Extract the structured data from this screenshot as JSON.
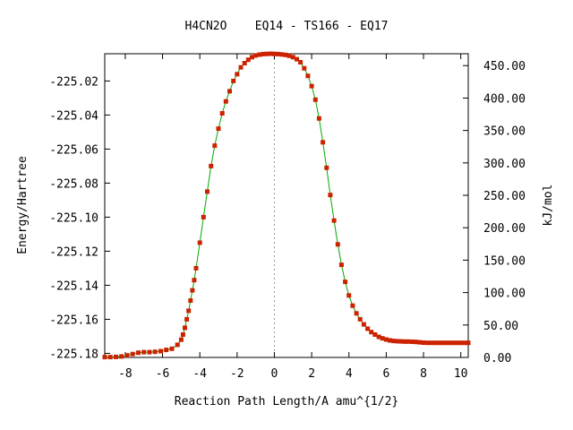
{
  "chart_data": {
    "type": "line",
    "title": "H4CN2O    EQ14 - TS166 - EQ17",
    "xlabel": "Reaction Path Length/A amu^{1/2}",
    "ylabel": "Energy/Hartree",
    "y2label": "kJ/mol",
    "xlim": [
      -9.1,
      10.4
    ],
    "ylim": [
      -225.1824,
      -225.004
    ],
    "y2lim": [
      0,
      468.3
    ],
    "x_ticks": [
      -8,
      -6,
      -4,
      -2,
      0,
      2,
      4,
      6,
      8,
      10
    ],
    "y_ticks": [
      -225.18,
      -225.16,
      -225.14,
      -225.12,
      -225.1,
      -225.08,
      -225.06,
      -225.04,
      -225.02
    ],
    "y2_ticks": [
      "0.00",
      "50.00",
      "100.00",
      "150.00",
      "200.00",
      "250.00",
      "300.00",
      "350.00",
      "400.00",
      "450.00"
    ],
    "ts_x": 0,
    "grid": false,
    "colors": {
      "line": "#00aa00",
      "marker": "#cc2200",
      "ts_line": "#999999"
    },
    "series": [
      {
        "x": [
          -9.1,
          -8.8,
          -8.5,
          -8.2,
          -7.9,
          -7.6,
          -7.3,
          -7.0,
          -6.7,
          -6.4,
          -6.1,
          -5.8,
          -5.5,
          -5.2,
          -5.0,
          -4.9,
          -4.8,
          -4.7,
          -4.6,
          -4.5,
          -4.4,
          -4.3,
          -4.2,
          -4.0,
          -3.8,
          -3.6,
          -3.4,
          -3.2,
          -3.0,
          -2.8,
          -2.6,
          -2.4,
          -2.2,
          -2.0,
          -1.8,
          -1.6,
          -1.4,
          -1.2,
          -1.0,
          -0.8,
          -0.6,
          -0.4,
          -0.2,
          0.0,
          0.2,
          0.4,
          0.6,
          0.8,
          1.0,
          1.2,
          1.4,
          1.6,
          1.8,
          2.0,
          2.2,
          2.4,
          2.6,
          2.8,
          3.0,
          3.2,
          3.4,
          3.6,
          3.8,
          4.0,
          4.2,
          4.4,
          4.6,
          4.8,
          5.0,
          5.2,
          5.4,
          5.6,
          5.8,
          6.0,
          6.2,
          6.4,
          6.6,
          6.8,
          7.0,
          7.2,
          7.4,
          7.6,
          7.8,
          8.0,
          8.2,
          8.4,
          8.6,
          8.8,
          9.0,
          9.2,
          9.4,
          9.6,
          9.8,
          10.0,
          10.2,
          10.4
        ],
        "y": [
          -225.1822,
          -225.1822,
          -225.1821,
          -225.1818,
          -225.1812,
          -225.1804,
          -225.1796,
          -225.1793,
          -225.1793,
          -225.1791,
          -225.1787,
          -225.178,
          -225.1773,
          -225.175,
          -225.172,
          -225.169,
          -225.165,
          -225.16,
          -225.155,
          -225.149,
          -225.143,
          -225.137,
          -225.13,
          -225.115,
          -225.1,
          -225.085,
          -225.07,
          -225.058,
          -225.048,
          -225.039,
          -225.032,
          -225.026,
          -225.02,
          -225.016,
          -225.012,
          -225.0095,
          -225.0075,
          -225.006,
          -225.005,
          -225.0045,
          -225.0042,
          -225.0041,
          -225.004,
          -225.0041,
          -225.0042,
          -225.0044,
          -225.0047,
          -225.0052,
          -225.006,
          -225.0072,
          -225.009,
          -225.0125,
          -225.017,
          -225.023,
          -225.031,
          -225.042,
          -225.056,
          -225.071,
          -225.087,
          -225.102,
          -225.116,
          -225.128,
          -225.138,
          -225.146,
          -225.152,
          -225.1565,
          -225.16,
          -225.163,
          -225.1655,
          -225.1675,
          -225.169,
          -225.1703,
          -225.1712,
          -225.1719,
          -225.1724,
          -225.1727,
          -225.1729,
          -225.173,
          -225.1731,
          -225.1731,
          -225.1732,
          -225.1733,
          -225.1735,
          -225.1737,
          -225.1738,
          -225.1738,
          -225.1738,
          -225.1738,
          -225.1738,
          -225.1738,
          -225.1738,
          -225.1738,
          -225.1738,
          -225.1738,
          -225.1738,
          -225.1738
        ]
      }
    ]
  }
}
